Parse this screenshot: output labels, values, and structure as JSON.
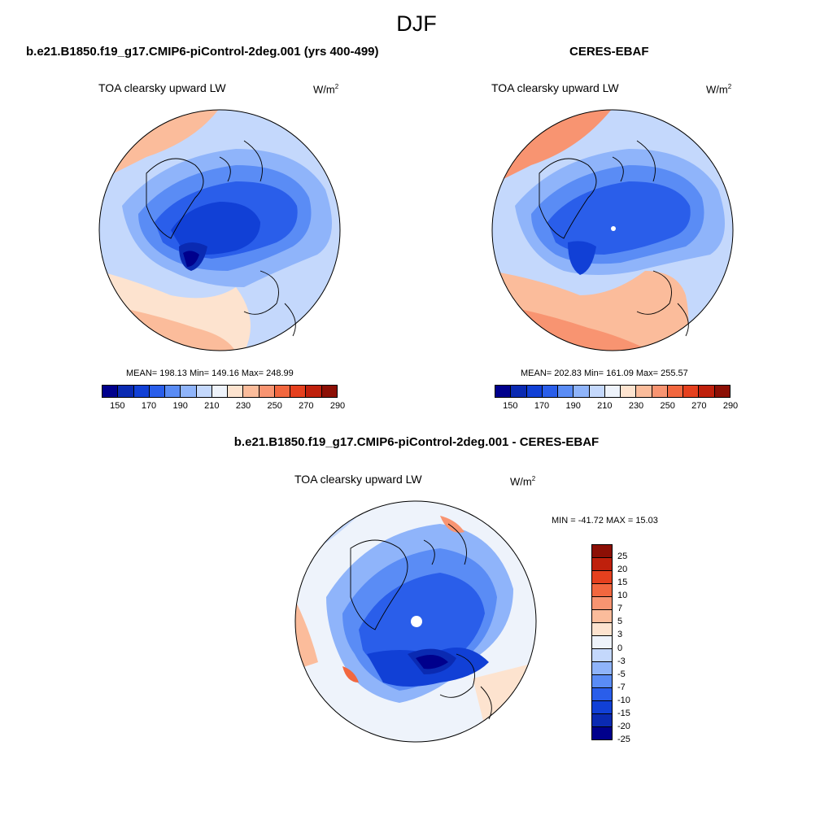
{
  "main_title": "DJF",
  "panels": [
    {
      "title": "b.e21.B1850.f19_g17.CMIP6-piControl-2deg.001 (yrs 400-499)",
      "field": "TOA clearsky upward LW",
      "units_base": "W/m",
      "units_exp": "2",
      "stats": "MEAN= 198.13  Min= 149.16  Max= 248.99"
    },
    {
      "title": "CERES-EBAF",
      "field": "TOA clearsky upward LW",
      "units_base": "W/m",
      "units_exp": "2",
      "stats": "MEAN= 202.83  Min= 161.09  Max= 255.57"
    },
    {
      "title": "b.e21.B1850.f19_g17.CMIP6-piControl-2deg.001 - CERES-EBAF",
      "field": "TOA clearsky upward LW",
      "units_base": "W/m",
      "units_exp": "2",
      "stats": "MIN = -41.72 MAX =  15.03"
    }
  ],
  "abs_colorbar": {
    "colors": [
      "#00008c",
      "#0a2ab2",
      "#1140d6",
      "#2a5eea",
      "#5a8cf5",
      "#8fb4fa",
      "#c4d8fc",
      "#eef3fb",
      "#fde3cf",
      "#fbbc9b",
      "#f89471",
      "#f2673f",
      "#e5401e",
      "#bf200c",
      "#8c0f05"
    ],
    "tick_labels": [
      "150",
      "170",
      "190",
      "210",
      "230",
      "250",
      "270",
      "290"
    ]
  },
  "diff_colorbar": {
    "colors": [
      "#8c0f05",
      "#bf200c",
      "#e5401e",
      "#f2673f",
      "#f89471",
      "#fbbc9b",
      "#fde3cf",
      "#eef3fb",
      "#c4d8fc",
      "#8fb4fa",
      "#5a8cf5",
      "#2a5eea",
      "#1140d6",
      "#0a2ab2",
      "#00008c"
    ],
    "tick_labels": [
      "25",
      "20",
      "15",
      "10",
      "7",
      "5",
      "3",
      "0",
      "-3",
      "-5",
      "-7",
      "-10",
      "-15",
      "-20",
      "-25"
    ]
  }
}
